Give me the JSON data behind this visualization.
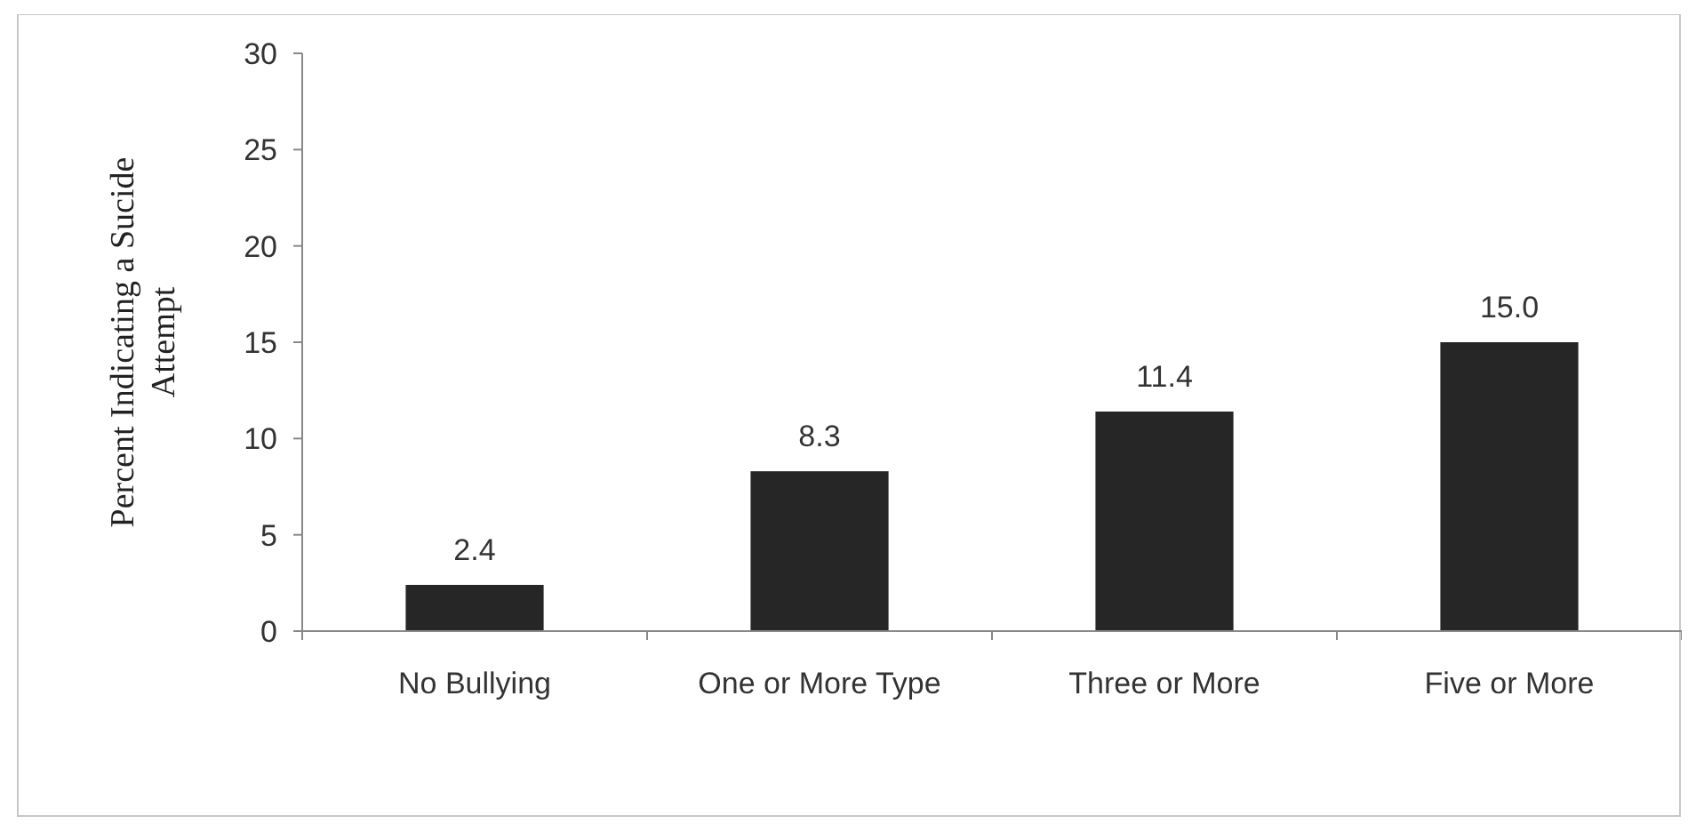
{
  "chart_data": {
    "type": "bar",
    "ylabel": "Percent Indicating a Sucide Attempt",
    "categories": [
      "No Bullying",
      "One or More Type",
      "Three or More",
      "Five or More"
    ],
    "values": [
      2.4,
      8.3,
      11.4,
      15.0
    ],
    "value_labels": [
      "2.4",
      "8.3",
      "11.4",
      "15.0"
    ],
    "color": "#262626",
    "ylim": [
      0,
      30
    ],
    "yticks": [
      0,
      5,
      10,
      15,
      20,
      25,
      30
    ],
    "grid": false
  }
}
